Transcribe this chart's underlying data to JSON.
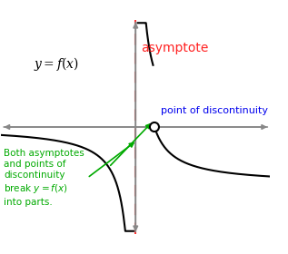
{
  "figsize": [
    3.17,
    2.8
  ],
  "dpi": 100,
  "bg_color": "#ffffff",
  "axis_color": "#888888",
  "curve_color": "#000000",
  "asymptote_color": "#ff3333",
  "open_circle_color": "#000000",
  "label_y_fx": "$y = f(x)$",
  "label_asymptote": "asymptote",
  "label_discontinuity": "point of discontinuity",
  "label_annotation": "Both asymptotes\nand points of\ndiscontinuity\nbreak $y=f(x)$\ninto parts.",
  "label_y_fx_color": "#000000",
  "label_asymptote_color": "#ff2222",
  "label_discontinuity_color": "#0000ee",
  "label_annotation_color": "#00aa00",
  "arrow_color": "#00aa00",
  "xlim": [
    -5.0,
    5.0
  ],
  "ylim": [
    -4.0,
    4.0
  ],
  "asym_x": 0.0,
  "disc_x": 0.7,
  "disc_y": 0.0
}
